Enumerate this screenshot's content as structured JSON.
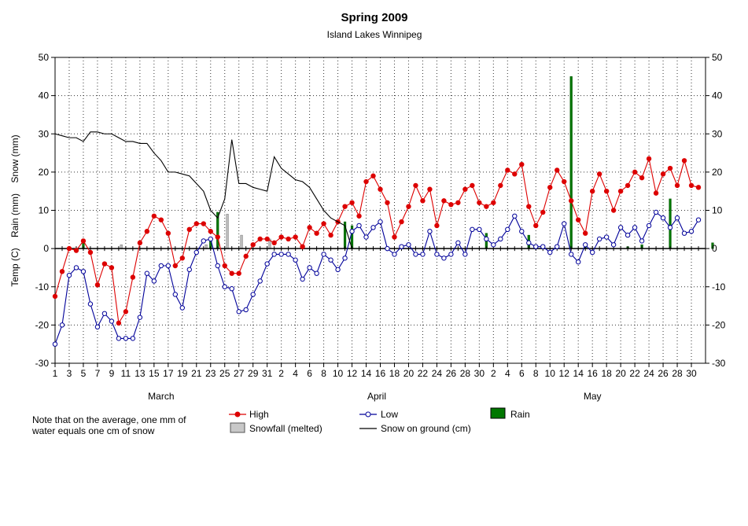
{
  "chart_data": {
    "type": "line",
    "title": "Spring 2009",
    "subtitle": "Island Lakes Winnipeg",
    "ylabel": "Temp (C)    Rain (mm)    Snow (mm)",
    "ylim": [
      -30,
      50
    ],
    "yticks": [
      -30,
      -20,
      -10,
      0,
      10,
      20,
      30,
      40,
      50
    ],
    "grid": true,
    "legend_position": "bottom",
    "x_tick_labels": [
      "1",
      "3",
      "5",
      "7",
      "9",
      "11",
      "13",
      "15",
      "17",
      "19",
      "21",
      "23",
      "25",
      "27",
      "29",
      "31",
      "2",
      "4",
      "6",
      "8",
      "10",
      "12",
      "14",
      "16",
      "18",
      "20",
      "22",
      "24",
      "26",
      "28",
      "30",
      "2",
      "4",
      "6",
      "8",
      "10",
      "12",
      "14",
      "16",
      "18",
      "20",
      "22",
      "24",
      "26",
      "28",
      "30"
    ],
    "month_labels": [
      {
        "label": "March",
        "start_day": 0
      },
      {
        "label": "April",
        "start_day": 31
      },
      {
        "label": "May",
        "start_day": 61
      }
    ],
    "series": [
      {
        "name": "High",
        "type": "line",
        "color": "#dd0000",
        "marker": "filled-circle",
        "values": [
          -12.5,
          -6,
          0,
          -0.5,
          2,
          -1,
          -9.5,
          -4,
          -5,
          -19.5,
          -16.5,
          -7.5,
          1.5,
          4.5,
          8.5,
          7.5,
          4,
          -4.5,
          -2.5,
          5,
          6.5,
          6.5,
          4.5,
          3,
          -4.5,
          -6.5,
          -6.5,
          -2,
          1,
          2.5,
          2.5,
          1.5,
          3,
          2.5,
          3,
          0.5,
          5.5,
          4,
          6.5,
          3.5,
          7,
          11,
          12,
          8.5,
          17.5,
          19,
          15.5,
          12,
          3,
          7,
          11,
          16.5,
          12.5,
          15.5,
          6,
          12.5,
          11.5,
          12,
          15.5,
          16.5,
          12,
          11,
          12,
          16.5,
          20.5,
          19.5,
          22,
          11,
          6,
          9.5,
          16,
          20.5,
          17.5,
          12.5,
          7.5,
          4,
          15,
          19.5,
          15,
          10,
          15,
          16.5,
          20,
          18.5,
          23.5,
          14.5,
          19.5,
          21,
          16.5,
          23,
          16.5,
          16
        ]
      },
      {
        "name": "Low",
        "type": "line",
        "color": "#000099",
        "marker": "open-circle",
        "values": [
          -25,
          -20,
          -7,
          -5,
          -6,
          -14.5,
          -20.5,
          -17,
          -19,
          -23.5,
          -23.5,
          -23.5,
          -18,
          -6.5,
          -8.5,
          -4.5,
          -4.5,
          -12,
          -15.5,
          -5.5,
          -1,
          2,
          2.5,
          -4.5,
          -10,
          -10.5,
          -16.5,
          -16,
          -12,
          -8.5,
          -4,
          -1.5,
          -1.5,
          -1.5,
          -3,
          -8,
          -5,
          -6.5,
          -1.5,
          -3,
          -5.5,
          -2.5,
          4.5,
          6,
          3,
          5.5,
          7,
          0,
          -1.5,
          0.5,
          1,
          -1.5,
          -1.5,
          4.5,
          -1.5,
          -2.5,
          -1.5,
          1.5,
          -1.5,
          5,
          5,
          2.5,
          1,
          2.5,
          5,
          8.5,
          4.5,
          1.5,
          0.5,
          0.5,
          -1,
          0.5,
          6.5,
          -1.5,
          -3.5,
          1,
          -1,
          2.5,
          3,
          1,
          5.5,
          3.5,
          5.5,
          2,
          6,
          9.5,
          8,
          5.5,
          8,
          4,
          4.5,
          7.5
        ]
      },
      {
        "name": "Snow on ground (cm)",
        "type": "line",
        "color": "#000000",
        "marker": "none",
        "values": [
          30,
          29.5,
          29,
          29,
          28,
          30.5,
          30.5,
          30,
          30,
          29,
          28,
          28,
          27.5,
          27.5,
          25,
          23,
          20,
          20,
          19.5,
          19,
          17,
          15,
          10,
          8,
          13,
          28.5,
          17,
          17,
          16,
          15.5,
          15,
          24,
          21,
          19.5,
          18,
          17.5,
          16,
          13,
          10,
          8,
          7,
          6,
          0,
          0,
          0,
          0,
          0,
          0,
          0,
          0,
          0,
          0,
          0,
          0,
          0,
          0,
          0,
          0,
          0,
          0,
          0,
          0,
          0,
          0,
          0,
          0,
          0,
          0,
          0,
          0,
          0,
          0,
          0,
          0,
          0,
          0,
          0,
          0,
          0,
          0,
          0,
          0,
          0,
          0,
          0,
          0,
          0,
          0,
          0,
          0,
          0,
          0
        ]
      },
      {
        "name": "Rain",
        "type": "bar",
        "color": "#007700",
        "values": [
          0,
          0,
          0,
          0,
          2.5,
          0,
          0,
          0,
          0,
          0,
          0,
          0,
          0,
          0,
          0,
          0,
          0,
          0,
          0,
          0,
          0,
          0,
          2.5,
          9.5,
          0,
          0,
          0,
          0,
          0,
          0,
          0,
          0,
          0,
          0,
          0,
          0,
          0,
          0,
          0,
          0,
          0,
          7,
          6,
          0,
          0,
          0,
          0,
          0,
          0,
          0,
          0,
          0,
          0,
          0,
          0,
          0,
          0,
          0,
          0,
          0,
          0,
          4,
          0,
          0,
          0,
          0,
          0,
          3.5,
          0,
          0,
          0,
          0,
          0,
          45,
          0,
          1.5,
          0,
          0,
          0,
          0,
          0,
          0.5,
          0,
          1,
          0,
          0,
          0,
          13,
          0,
          0,
          0,
          0,
          0,
          1.5
        ]
      },
      {
        "name": "Snowfall (melted)",
        "type": "bar",
        "color": "#bbbbbb",
        "values": [
          0,
          0,
          0,
          0,
          0,
          0,
          0,
          0,
          0,
          1,
          0,
          0,
          0,
          0,
          0,
          0,
          0,
          0,
          0,
          0,
          0,
          1,
          0,
          0,
          9,
          0,
          3.5,
          0,
          0,
          0,
          2.5,
          0,
          0,
          0,
          0,
          0,
          0,
          0,
          0,
          0,
          0,
          0,
          0,
          0,
          0,
          0,
          0,
          0,
          0,
          0,
          0,
          0,
          0,
          0,
          0,
          0,
          0,
          0,
          0,
          0,
          0,
          0,
          0,
          0,
          0,
          0,
          0,
          0,
          0,
          0,
          0,
          0,
          0,
          0,
          0,
          0,
          0,
          0,
          0,
          0,
          0,
          0,
          0,
          0,
          0,
          0,
          0,
          0,
          0,
          0,
          0,
          0
        ]
      }
    ]
  },
  "legend": {
    "high": "High",
    "low": "Low",
    "rain": "Rain",
    "snowfall": "Snowfall (melted)",
    "snow_on_ground": "Snow on ground (cm)"
  },
  "note": {
    "line1": "Note that on the average, one mm of",
    "line2": "water equals one cm of snow"
  }
}
